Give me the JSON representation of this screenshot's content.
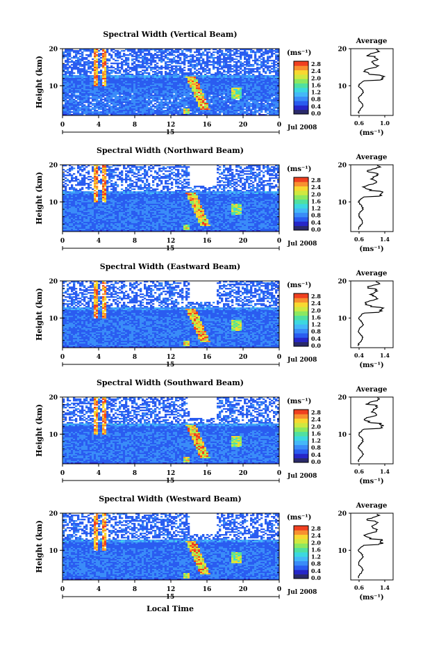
{
  "figure": {
    "xlabel": "Local Time",
    "date_label": "Jul 2008",
    "day_label": "15",
    "colorbar_unit": "(ms⁻¹)",
    "colorbar_ticks": [
      "0.0",
      "0.4",
      "0.8",
      "1.2",
      "1.6",
      "2.0",
      "2.4",
      "2.8"
    ],
    "colorbar_colors": [
      "#2a2a6a",
      "#2626c8",
      "#2a5cf0",
      "#3a8cf8",
      "#44b8f8",
      "#3cd8e0",
      "#50e0a0",
      "#8ce860",
      "#d0e840",
      "#f8d830",
      "#f89030",
      "#f04020"
    ],
    "x_ticks": [
      "0",
      "4",
      "8",
      "12",
      "16",
      "20",
      "0"
    ],
    "y_ticks": [
      "20",
      "10"
    ],
    "ylabel": "Height (km)",
    "avg_title": "Average",
    "avg_unit": "(ms⁻¹)",
    "avg_y_ticks": [
      "20",
      "10"
    ]
  },
  "chart_data": [
    {
      "type": "heatmap",
      "title": "Spectral Width (Vertical Beam)",
      "xlabel": "Local Time",
      "ylabel": "Height (km)",
      "xlim": [
        0,
        24
      ],
      "ylim": [
        2,
        20
      ],
      "clim": [
        0.0,
        3.0
      ],
      "avg_xticks": [
        "0.6",
        "1.0"
      ],
      "avg_xlim": [
        0.5,
        1.2
      ]
    },
    {
      "type": "heatmap",
      "title": "Spectral Width (Northward Beam)",
      "xlabel": "Local Time",
      "ylabel": "Height (km)",
      "xlim": [
        0,
        24
      ],
      "ylim": [
        2,
        20
      ],
      "clim": [
        0.0,
        3.0
      ],
      "avg_xticks": [
        "0.6",
        "1.4"
      ],
      "avg_xlim": [
        0.5,
        1.5
      ]
    },
    {
      "type": "heatmap",
      "title": "Spectral Width (Eastward Beam)",
      "xlabel": "Local Time",
      "ylabel": "Height (km)",
      "xlim": [
        0,
        24
      ],
      "ylim": [
        2,
        20
      ],
      "clim": [
        0.0,
        3.0
      ],
      "avg_xticks": [
        "0.4",
        "1.4"
      ],
      "avg_xlim": [
        0.3,
        1.5
      ]
    },
    {
      "type": "heatmap",
      "title": "Spectral Width (Southward Beam)",
      "xlabel": "Local Time",
      "ylabel": "Height (km)",
      "xlim": [
        0,
        24
      ],
      "ylim": [
        2,
        20
      ],
      "clim": [
        0.0,
        3.0
      ],
      "avg_xticks": [
        "0.6",
        "1.4"
      ],
      "avg_xlim": [
        0.5,
        1.5
      ]
    },
    {
      "type": "heatmap",
      "title": "Spectral Width (Westward Beam)",
      "xlabel": "Local Time",
      "ylabel": "Height (km)",
      "xlim": [
        0,
        24
      ],
      "ylim": [
        2,
        20
      ],
      "clim": [
        0.0,
        3.0
      ],
      "avg_xticks": [
        "0.6",
        "1.4"
      ],
      "avg_xlim": [
        0.5,
        1.5
      ]
    }
  ]
}
